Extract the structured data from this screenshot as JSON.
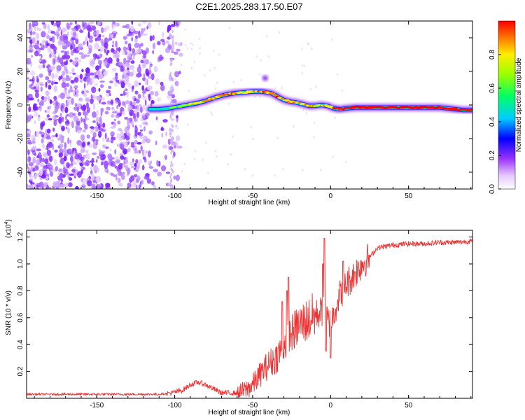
{
  "title": "C2E1.2025.283.17.50.E07",
  "chart_data": [
    {
      "type": "heatmap",
      "id": "spectrogram",
      "xlabel": "Height of straight line (km)",
      "ylabel": "Frequency (Hz)",
      "xlim": [
        -195,
        91
      ],
      "ylim": [
        -50,
        50
      ],
      "xticks": [
        -150,
        -100,
        -50,
        0,
        50
      ],
      "yticks": [
        -40,
        -20,
        0,
        20,
        40
      ],
      "noise_region_x": [
        -195,
        -102
      ],
      "ridge": {
        "x": [
          -116,
          -110,
          -104,
          -98,
          -92,
          -86,
          -80,
          -74,
          -68,
          -62,
          -56,
          -50,
          -44,
          -38,
          -34,
          -30,
          -26,
          -22,
          -18,
          -14,
          -10,
          -6,
          -2,
          2,
          6,
          10,
          16,
          30,
          50,
          70,
          85,
          91
        ],
        "freq": [
          -2.5,
          -2.5,
          -2,
          -1,
          0,
          1,
          2.5,
          4.5,
          6,
          7,
          7.5,
          8,
          8,
          7,
          5,
          3,
          2,
          1.5,
          0.5,
          -0.5,
          -0.5,
          0,
          -0.5,
          -2,
          -2.5,
          -2,
          -1.5,
          -1.5,
          -1.5,
          -1.5,
          -3,
          -3
        ],
        "amplitude": [
          0.35,
          0.4,
          0.45,
          0.5,
          0.6,
          0.7,
          0.75,
          0.8,
          0.85,
          0.85,
          0.8,
          0.8,
          0.85,
          0.85,
          0.8,
          0.85,
          0.85,
          0.8,
          0.8,
          0.8,
          0.75,
          0.8,
          0.8,
          0.85,
          0.9,
          0.95,
          1.0,
          1.0,
          1.0,
          1.0,
          0.9,
          0.85
        ]
      }
    },
    {
      "type": "line",
      "id": "snr",
      "xlabel": "Height of straight line (km)",
      "ylabel": "SNR (10 * v/v)",
      "yscale_label": "(x10",
      "yscale_exponent": "4",
      "ylim": [
        0,
        1.25
      ],
      "xlim": [
        -195,
        91
      ],
      "xticks": [
        -150,
        -100,
        -50,
        0,
        50
      ],
      "yticks": [
        0.2,
        0.4,
        0.6,
        0.8,
        1.0,
        1.2
      ],
      "color": "#ee3333",
      "trend": {
        "x": [
          -195,
          -110,
          -102,
          -95,
          -90,
          -85,
          -80,
          -75,
          -70,
          -65,
          -60,
          -55,
          -50,
          -45,
          -40,
          -35,
          -30,
          -25,
          -20,
          -15,
          -10,
          -5,
          0,
          5,
          10,
          15,
          20,
          25,
          30,
          40,
          50,
          60,
          70,
          80,
          91
        ],
        "y": [
          0.03,
          0.03,
          0.04,
          0.06,
          0.1,
          0.12,
          0.1,
          0.07,
          0.04,
          0.04,
          0.04,
          0.06,
          0.1,
          0.18,
          0.25,
          0.3,
          0.4,
          0.48,
          0.55,
          0.58,
          0.62,
          0.65,
          0.55,
          0.75,
          0.85,
          0.92,
          1.0,
          1.05,
          1.12,
          1.14,
          1.15,
          1.15,
          1.16,
          1.16,
          1.17
        ]
      },
      "spikes": [
        {
          "x": -31,
          "y": 0.72
        },
        {
          "x": -28,
          "y": 0.8
        },
        {
          "x": -27,
          "y": 0.9
        },
        {
          "x": -5,
          "y": 1.0
        },
        {
          "x": -4,
          "y": 1.19
        },
        {
          "x": -3,
          "y": 0.35
        },
        {
          "x": 0,
          "y": 0.3
        },
        {
          "x": 8,
          "y": 1.02
        }
      ]
    }
  ],
  "colorbar": {
    "label": "Normalized spectral amplitude",
    "range": [
      0,
      1
    ],
    "ticks": [
      0.0,
      0.2,
      0.4,
      0.6,
      0.8
    ],
    "tick_labels": [
      "0.0",
      "0.2",
      "0.4",
      "0.6",
      "0.8"
    ]
  }
}
